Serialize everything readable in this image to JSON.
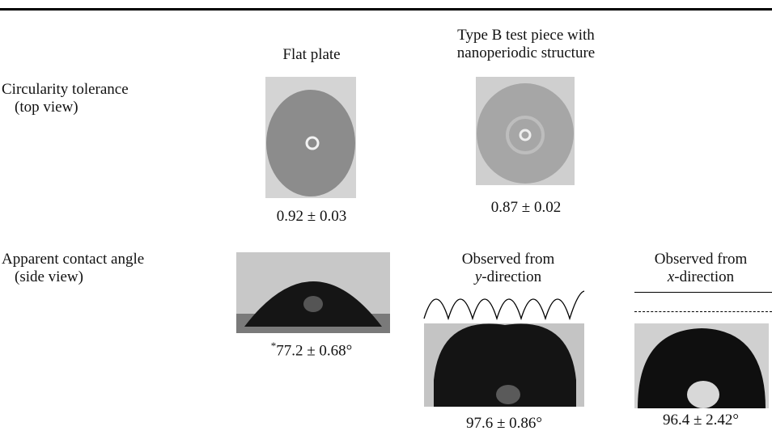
{
  "header": {
    "columns": [
      "Flat plate",
      "Type B test piece with nanoperiodic structure"
    ]
  },
  "rows": [
    {
      "label": "Circularity tolerance",
      "sublabel": "(top view)",
      "flat_plate": "0.92 ± 0.03",
      "type_b": "0.87 ± 0.02"
    },
    {
      "label": "Apparent contact angle",
      "sublabel": "(side view)",
      "flat_plate_marker": "*",
      "flat_plate": "77.2 ± 0.68°",
      "type_b_views": [
        {
          "caption": "Observed from",
          "direction": "y-direction",
          "value": "97.6 ± 0.86°"
        },
        {
          "caption": "Observed from",
          "direction": "x-direction",
          "value": "96.4 ± 2.42°"
        }
      ]
    }
  ]
}
